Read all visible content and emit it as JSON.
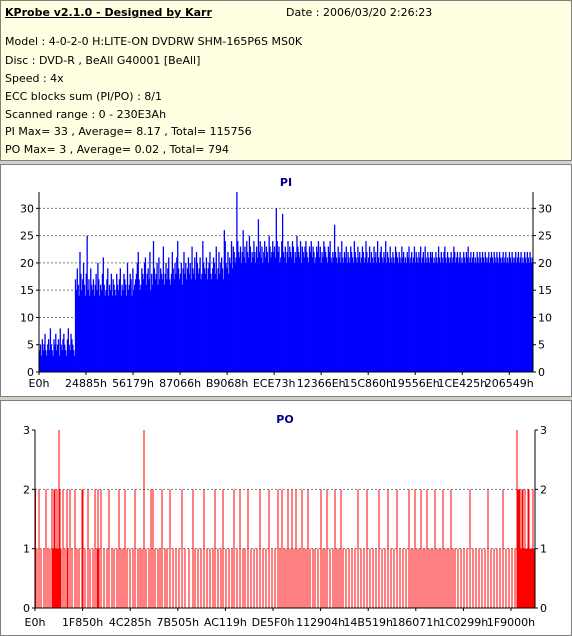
{
  "header": {
    "title": "KProbe v2.1.0 - Designed by Karr",
    "date": "Date : 2006/03/20 2:26:23",
    "lines": [
      "Model : 4-0-2-0 H:LITE-ON DVDRW SHM-165P6S MS0K",
      "Disc : DVD-R , BeAll G40001 [BeAll]",
      "Speed : 4x",
      "ECC blocks sum (PI/PO) : 8/1",
      "Scanned range : 0 - 230E3Ah",
      "PI Max= 33 , Average= 8.17 , Total= 115756",
      "PO Max= 3 , Average= 0.02 , Total= 794"
    ]
  },
  "chart_data": [
    {
      "type": "bar",
      "title": "PI",
      "color": "#0000ff",
      "ylim": [
        0,
        33
      ],
      "yticks": [
        0,
        5,
        10,
        15,
        20,
        25,
        30
      ],
      "xlabels": [
        "E0h",
        "24885h",
        "56179h",
        "87066h",
        "B9068h",
        "ECE73h",
        "12366Eh",
        "15C860h",
        "19556Eh",
        "1CE425h",
        "206549h"
      ],
      "grid": true,
      "values": [
        4,
        5,
        3,
        6,
        4,
        5,
        7,
        4,
        3,
        5,
        6,
        4,
        8,
        5,
        4,
        3,
        6,
        5,
        7,
        4,
        5,
        6,
        3,
        8,
        5,
        4,
        6,
        7,
        5,
        4,
        3,
        6,
        8,
        5,
        4,
        7,
        6,
        5,
        4,
        3,
        17,
        15,
        19,
        16,
        14,
        22,
        18,
        15,
        17,
        20,
        16,
        14,
        18,
        25,
        15,
        17,
        14,
        19,
        16,
        15,
        17,
        14,
        16,
        18,
        15,
        20,
        17,
        14,
        16,
        15,
        18,
        21,
        16,
        14,
        15,
        17,
        19,
        14,
        16,
        15,
        18,
        14,
        17,
        16,
        15,
        14,
        18,
        16,
        15,
        17,
        19,
        14,
        16,
        15,
        18,
        17,
        16,
        14,
        20,
        15,
        16,
        18,
        17,
        14,
        19,
        15,
        16,
        17,
        18,
        20,
        22,
        17,
        15,
        16,
        19,
        18,
        17,
        20,
        21,
        16,
        18,
        19,
        17,
        22,
        15,
        18,
        16,
        24,
        19,
        17,
        18,
        20,
        16,
        21,
        17,
        19,
        18,
        17,
        23,
        16,
        18,
        20,
        17,
        19,
        21,
        17,
        16,
        18,
        22,
        19,
        17,
        20,
        18,
        21,
        24,
        19,
        17,
        18,
        20,
        16,
        19,
        22,
        18,
        20,
        17,
        19,
        21,
        18,
        20,
        17,
        23,
        19,
        18,
        21,
        17,
        22,
        20,
        18,
        19,
        21,
        17,
        18,
        24,
        20,
        19,
        18,
        21,
        17,
        19,
        20,
        22,
        18,
        17,
        19,
        21,
        20,
        18,
        23,
        17,
        19,
        22,
        18,
        20,
        21,
        19,
        17,
        26,
        24,
        20,
        19,
        22,
        18,
        21,
        20,
        24,
        19,
        23,
        22,
        20,
        21,
        33,
        24,
        22,
        21,
        23,
        20,
        22,
        26,
        21,
        23,
        20,
        24,
        22,
        21,
        25,
        23,
        20,
        22,
        21,
        24,
        22,
        20,
        23,
        21,
        28,
        22,
        24,
        21,
        23,
        20,
        22,
        24,
        21,
        23,
        22,
        20,
        25,
        23,
        21,
        22,
        24,
        22,
        23,
        21,
        30,
        24,
        22,
        23,
        20,
        21,
        24,
        29,
        22,
        21,
        23,
        20,
        22,
        24,
        21,
        23,
        22,
        21,
        24,
        23,
        20,
        22,
        21,
        25,
        23,
        22,
        21,
        24,
        20,
        23,
        22,
        21,
        23,
        24,
        22,
        21,
        20,
        23,
        22,
        24,
        21,
        23,
        22,
        20,
        21,
        23,
        22,
        24,
        21,
        23,
        20,
        22,
        21,
        24,
        23,
        22,
        21,
        20,
        23,
        22,
        24,
        21,
        20,
        22,
        21,
        27,
        22,
        21,
        20,
        23,
        21,
        22,
        20,
        24,
        21,
        20,
        22,
        21,
        23,
        20,
        22,
        21,
        20,
        23,
        22,
        21,
        20,
        24,
        22,
        21,
        20,
        23,
        21,
        22,
        20,
        21,
        23,
        22,
        20,
        21,
        24,
        22,
        20,
        21,
        23,
        20,
        22,
        21,
        20,
        23,
        21,
        22,
        20,
        24,
        21,
        20,
        22,
        23,
        21,
        20,
        22,
        21,
        24,
        20,
        22,
        21,
        20,
        23,
        21,
        20,
        22,
        21,
        20,
        23,
        22,
        21,
        20,
        22,
        21,
        20,
        23,
        21,
        22,
        20,
        21,
        20,
        22,
        21,
        23,
        20,
        21,
        22,
        20,
        21,
        23,
        20,
        22,
        21,
        20,
        22,
        21,
        23,
        20,
        21,
        22,
        20,
        23,
        21,
        20,
        22,
        21,
        20,
        22,
        21,
        22,
        20,
        21,
        20,
        22,
        21,
        20,
        23,
        21,
        20,
        22,
        21,
        20,
        22,
        23,
        21,
        20,
        22,
        21,
        20,
        21,
        22,
        20,
        21,
        23,
        22,
        20,
        21,
        22,
        20,
        21,
        22,
        20,
        21,
        20,
        22,
        21,
        20,
        22,
        21,
        23,
        20,
        21,
        22,
        20,
        21,
        22,
        20,
        21,
        20,
        22,
        21,
        20,
        22,
        21,
        20,
        22,
        21,
        20,
        22,
        21,
        20,
        21,
        22,
        20,
        21,
        22,
        21,
        20,
        22,
        21,
        20,
        22,
        21,
        20,
        22,
        21,
        20,
        21,
        22,
        20,
        21,
        22,
        20,
        21,
        20,
        22,
        21,
        20,
        22,
        21,
        20,
        21,
        22,
        20,
        21,
        22,
        20,
        21,
        22,
        20,
        21,
        20,
        22,
        21,
        20,
        22,
        21,
        20,
        22,
        21,
        20,
        21
      ]
    },
    {
      "type": "bar",
      "title": "PO",
      "color": "#ff0000",
      "ylim": [
        0,
        3
      ],
      "yticks": [
        0,
        1,
        2,
        3
      ],
      "xlabels": [
        "E0h",
        "1F850h",
        "4C285h",
        "7B505h",
        "AC119h",
        "DE5F0h",
        "112904h",
        "14B519h",
        "186071h",
        "1C0299h",
        "1F9000h"
      ],
      "grid": true,
      "points": [
        [
          0.5,
          2
        ],
        [
          2,
          1
        ],
        [
          4,
          2
        ],
        [
          6,
          1
        ],
        [
          9,
          1
        ],
        [
          11,
          2
        ],
        [
          13,
          1
        ],
        [
          15,
          1
        ],
        [
          17,
          2
        ],
        [
          18,
          1
        ],
        [
          19,
          2
        ],
        [
          20,
          2
        ],
        [
          21,
          1
        ],
        [
          22,
          2
        ],
        [
          23,
          1
        ],
        [
          24,
          3
        ],
        [
          25,
          2
        ],
        [
          26,
          1
        ],
        [
          28,
          2
        ],
        [
          30,
          1
        ],
        [
          32,
          2
        ],
        [
          33,
          1
        ],
        [
          35,
          2
        ],
        [
          37,
          1
        ],
        [
          40,
          2
        ],
        [
          42,
          1
        ],
        [
          44,
          1
        ],
        [
          47,
          2
        ],
        [
          48,
          2
        ],
        [
          50,
          1
        ],
        [
          53,
          2
        ],
        [
          55,
          1
        ],
        [
          58,
          1
        ],
        [
          60,
          2
        ],
        [
          62,
          1
        ],
        [
          63,
          2
        ],
        [
          64,
          1
        ],
        [
          66,
          2
        ],
        [
          69,
          1
        ],
        [
          72,
          1
        ],
        [
          74,
          2
        ],
        [
          77,
          1
        ],
        [
          79,
          1
        ],
        [
          82,
          1
        ],
        [
          84,
          2
        ],
        [
          86,
          1
        ],
        [
          88,
          1
        ],
        [
          90,
          2
        ],
        [
          92,
          1
        ],
        [
          95,
          1
        ],
        [
          98,
          1
        ],
        [
          100,
          2
        ],
        [
          103,
          1
        ],
        [
          105,
          1
        ],
        [
          107,
          1
        ],
        [
          109,
          3
        ],
        [
          111,
          1
        ],
        [
          114,
          1
        ],
        [
          116,
          2
        ],
        [
          118,
          2
        ],
        [
          120,
          1
        ],
        [
          123,
          1
        ],
        [
          125,
          1
        ],
        [
          127,
          2
        ],
        [
          130,
          1
        ],
        [
          132,
          1
        ],
        [
          135,
          2
        ],
        [
          138,
          1
        ],
        [
          141,
          1
        ],
        [
          144,
          1
        ],
        [
          147,
          2
        ],
        [
          150,
          1
        ],
        [
          154,
          1
        ],
        [
          158,
          2
        ],
        [
          160,
          1
        ],
        [
          163,
          1
        ],
        [
          166,
          1
        ],
        [
          169,
          2
        ],
        [
          172,
          1
        ],
        [
          175,
          1
        ],
        [
          178,
          1
        ],
        [
          180,
          2
        ],
        [
          183,
          1
        ],
        [
          186,
          1
        ],
        [
          188,
          2
        ],
        [
          191,
          1
        ],
        [
          194,
          1
        ],
        [
          197,
          1
        ],
        [
          199,
          2
        ],
        [
          202,
          1
        ],
        [
          205,
          2
        ],
        [
          208,
          1
        ],
        [
          210,
          1
        ],
        [
          213,
          2
        ],
        [
          216,
          1
        ],
        [
          219,
          1
        ],
        [
          222,
          1
        ],
        [
          225,
          2
        ],
        [
          228,
          1
        ],
        [
          231,
          1
        ],
        [
          234,
          2
        ],
        [
          237,
          1
        ],
        [
          240,
          1
        ],
        [
          243,
          2
        ],
        [
          245,
          1
        ],
        [
          247,
          2
        ],
        [
          249,
          1
        ],
        [
          251,
          1
        ],
        [
          253,
          2
        ],
        [
          255,
          1
        ],
        [
          257,
          2
        ],
        [
          259,
          1
        ],
        [
          261,
          2
        ],
        [
          263,
          1
        ],
        [
          265,
          1
        ],
        [
          267,
          2
        ],
        [
          269,
          1
        ],
        [
          271,
          1
        ],
        [
          273,
          2
        ],
        [
          275,
          1
        ],
        [
          278,
          1
        ],
        [
          280,
          1
        ],
        [
          283,
          1
        ],
        [
          286,
          2
        ],
        [
          288,
          1
        ],
        [
          290,
          1
        ],
        [
          292,
          2
        ],
        [
          295,
          1
        ],
        [
          298,
          1
        ],
        [
          300,
          2
        ],
        [
          302,
          1
        ],
        [
          304,
          1
        ],
        [
          306,
          2
        ],
        [
          308,
          1
        ],
        [
          311,
          1
        ],
        [
          314,
          1
        ],
        [
          317,
          1
        ],
        [
          320,
          1
        ],
        [
          323,
          2
        ],
        [
          326,
          1
        ],
        [
          329,
          1
        ],
        [
          332,
          2
        ],
        [
          335,
          1
        ],
        [
          338,
          1
        ],
        [
          341,
          1
        ],
        [
          344,
          2
        ],
        [
          347,
          1
        ],
        [
          350,
          1
        ],
        [
          353,
          2
        ],
        [
          356,
          1
        ],
        [
          359,
          1
        ],
        [
          362,
          2
        ],
        [
          365,
          1
        ],
        [
          368,
          1
        ],
        [
          371,
          1
        ],
        [
          374,
          2
        ],
        [
          376,
          1
        ],
        [
          378,
          1
        ],
        [
          380,
          2
        ],
        [
          382,
          1
        ],
        [
          384,
          1
        ],
        [
          386,
          2
        ],
        [
          388,
          1
        ],
        [
          390,
          1
        ],
        [
          392,
          2
        ],
        [
          394,
          1
        ],
        [
          396,
          1
        ],
        [
          398,
          1
        ],
        [
          400,
          2
        ],
        [
          402,
          1
        ],
        [
          404,
          1
        ],
        [
          406,
          1
        ],
        [
          408,
          2
        ],
        [
          410,
          1
        ],
        [
          412,
          1
        ],
        [
          414,
          1
        ],
        [
          416,
          2
        ],
        [
          418,
          1
        ],
        [
          420,
          1
        ],
        [
          423,
          1
        ],
        [
          426,
          1
        ],
        [
          429,
          1
        ],
        [
          432,
          1
        ],
        [
          435,
          2
        ],
        [
          438,
          1
        ],
        [
          441,
          1
        ],
        [
          444,
          1
        ],
        [
          447,
          1
        ],
        [
          450,
          1
        ],
        [
          453,
          2
        ],
        [
          456,
          1
        ],
        [
          459,
          1
        ],
        [
          462,
          1
        ],
        [
          465,
          1
        ],
        [
          468,
          2
        ],
        [
          471,
          1
        ],
        [
          474,
          1
        ],
        [
          477,
          1
        ],
        [
          480,
          1
        ],
        [
          482,
          3
        ],
        [
          483,
          2
        ],
        [
          484,
          2
        ],
        [
          485,
          2
        ],
        [
          486,
          1
        ],
        [
          487,
          2
        ],
        [
          488,
          2
        ],
        [
          489,
          1
        ],
        [
          490,
          2
        ],
        [
          491,
          1
        ],
        [
          492,
          1
        ],
        [
          493,
          2
        ],
        [
          494,
          2
        ],
        [
          495,
          1
        ],
        [
          496,
          1
        ],
        [
          497,
          1
        ],
        [
          498,
          2
        ],
        [
          499,
          1
        ]
      ]
    }
  ]
}
